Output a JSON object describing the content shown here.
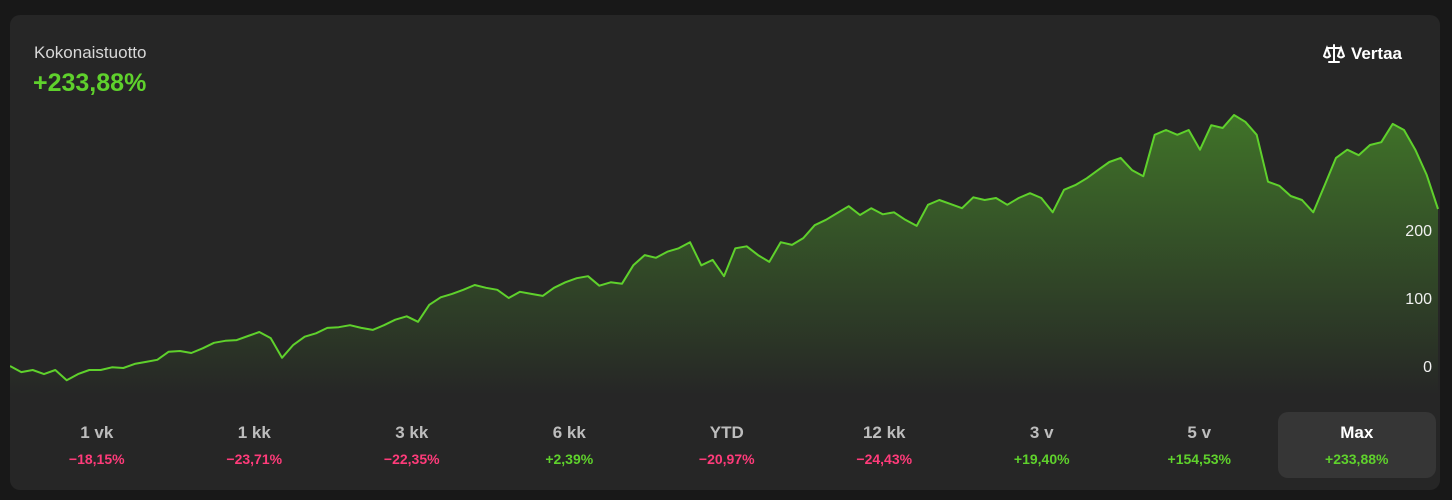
{
  "header": {
    "title": "Kokonaistuotto",
    "total": "+233,88%",
    "compare": "Vertaa"
  },
  "chart_data": {
    "type": "line",
    "color": "#5fd12c",
    "values": [
      3,
      -6,
      -3,
      -9,
      -3,
      -18,
      -9,
      -3,
      -3,
      1,
      0,
      6,
      9,
      12,
      24,
      25,
      22,
      29,
      37,
      40,
      41,
      47,
      53,
      44,
      15,
      34,
      46,
      51,
      59,
      60,
      63,
      59,
      56,
      63,
      71,
      76,
      68,
      93,
      104,
      109,
      115,
      122,
      118,
      115,
      103,
      112,
      109,
      106,
      118,
      126,
      132,
      135,
      121,
      126,
      124,
      151,
      166,
      162,
      171,
      176,
      185,
      151,
      159,
      135,
      176,
      179,
      166,
      156,
      185,
      181,
      191,
      210,
      218,
      228,
      238,
      225,
      235,
      226,
      229,
      218,
      209,
      240,
      247,
      241,
      235,
      251,
      247,
      250,
      240,
      250,
      257,
      250,
      229,
      262,
      269,
      279,
      291,
      303,
      309,
      291,
      282,
      343,
      350,
      343,
      350,
      321,
      357,
      353,
      372,
      362,
      343,
      274,
      268,
      253,
      247,
      229,
      269,
      309,
      321,
      313,
      328,
      332,
      359,
      350,
      321,
      284,
      233.88
    ],
    "ylim": [
      -40,
      390
    ],
    "yticks": [
      0,
      100,
      200
    ]
  },
  "periods": [
    {
      "label": "1 vk",
      "change": "−18,15%"
    },
    {
      "label": "1 kk",
      "change": "−23,71%"
    },
    {
      "label": "3 kk",
      "change": "−22,35%"
    },
    {
      "label": "6 kk",
      "change": "+2,39%"
    },
    {
      "label": "YTD",
      "change": "−20,97%"
    },
    {
      "label": "12 kk",
      "change": "−24,43%"
    },
    {
      "label": "3 v",
      "change": "+19,40%"
    },
    {
      "label": "5 v",
      "change": "+154,53%"
    },
    {
      "label": "Max",
      "change": "+233,88%"
    }
  ],
  "selected_period": 8
}
